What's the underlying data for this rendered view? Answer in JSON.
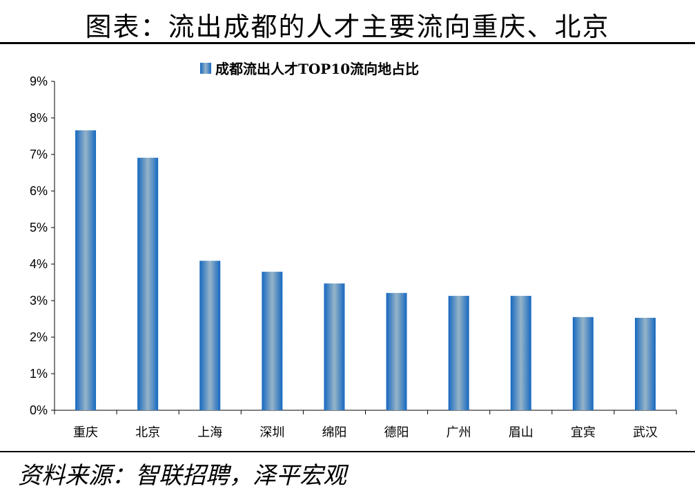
{
  "title": "图表：流出成都的人才主要流向重庆、北京",
  "source": "资料来源：智联招聘，泽平宏观",
  "chart_data": {
    "type": "bar",
    "title": "",
    "legend": [
      "成都流出人才TOP10流向地占比"
    ],
    "legend_position": "top",
    "categories": [
      "重庆",
      "北京",
      "上海",
      "深圳",
      "绵阳",
      "德阳",
      "广州",
      "眉山",
      "宜宾",
      "武汉"
    ],
    "series": [
      {
        "name": "成都流出人才TOP10流向地占比",
        "values": [
          7.66,
          6.91,
          4.09,
          3.79,
          3.47,
          3.21,
          3.13,
          3.13,
          2.55,
          2.53
        ],
        "color": "#1F6FC0"
      }
    ],
    "ylim": [
      0,
      9
    ],
    "yticks": [
      "0%",
      "1%",
      "2%",
      "3%",
      "4%",
      "5%",
      "6%",
      "7%",
      "8%",
      "9%"
    ],
    "grid": false
  }
}
